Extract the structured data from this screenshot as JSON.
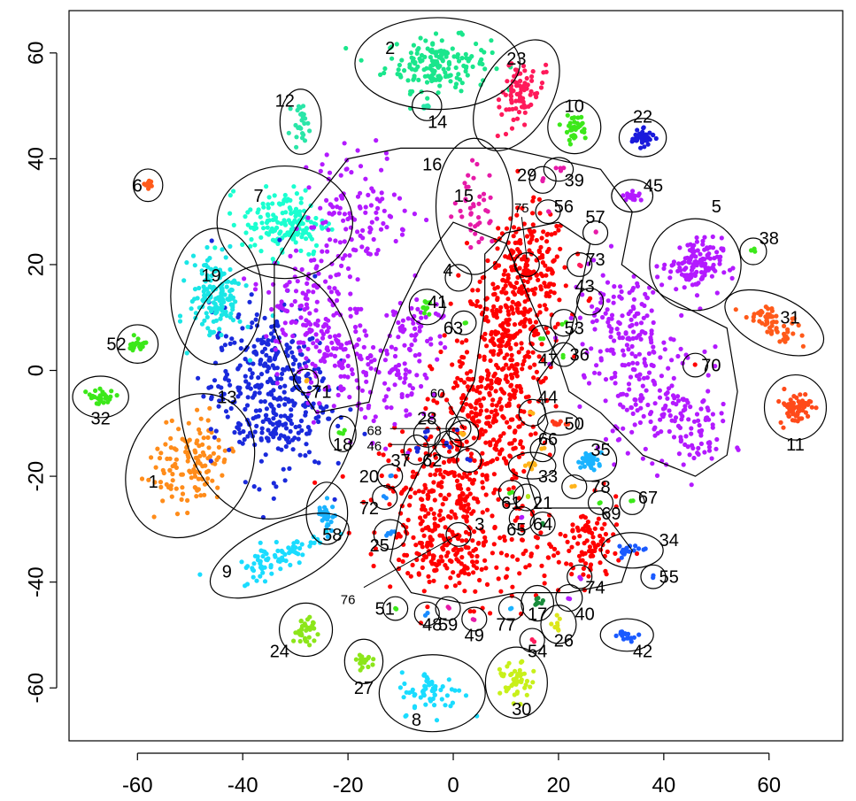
{
  "chart_data": {
    "type": "scatter",
    "title": "",
    "xlabel": "",
    "ylabel": "",
    "xlim": [
      -73,
      74
    ],
    "ylim": [
      -70,
      68
    ],
    "x_ticks": [
      -60,
      -40,
      -20,
      0,
      20,
      40,
      60
    ],
    "y_ticks": [
      -60,
      -40,
      -20,
      0,
      20,
      40,
      60
    ],
    "x_tick_labels": [
      "-60",
      "-40",
      "-20",
      "0",
      "20",
      "40",
      "60"
    ],
    "y_tick_labels": [
      "-60",
      "-40",
      "-20",
      "0",
      "20",
      "40",
      "60"
    ],
    "grid": false,
    "legend": "none",
    "clusters": [
      {
        "id": "1",
        "color": "#FF8C1A",
        "x": -50,
        "y": -18,
        "sx": 3.5,
        "sy": 4.5,
        "n": 130,
        "rot": -30
      },
      {
        "id": "2",
        "color": "#1AE68C",
        "x": -3,
        "y": 58,
        "sx": 5.0,
        "sy": 2.5,
        "n": 170
      },
      {
        "id": "3",
        "color": "#FF0000",
        "x": 5,
        "y": -15,
        "sx": 9.0,
        "sy": 20,
        "n": 1,
        "shape": "main"
      },
      {
        "id": "4",
        "color": "#FF0000",
        "x": 1,
        "y": 17.5,
        "sx": 0.3,
        "sy": 0.3,
        "n": 1
      },
      {
        "id": "5",
        "color": "#B31AFF",
        "x": 46,
        "y": 20,
        "sx": 2.5,
        "sy": 2.5,
        "n": 120
      },
      {
        "id": "6",
        "color": "#FF5A1A",
        "x": -58,
        "y": 35,
        "sx": 0.4,
        "sy": 0.5,
        "n": 12
      },
      {
        "id": "7",
        "color": "#1AFFD0",
        "x": -32,
        "y": 28,
        "sx": 4.0,
        "sy": 3.2,
        "n": 160
      },
      {
        "id": "8",
        "color": "#1ADCFF",
        "x": -4,
        "y": -61,
        "sx": 3.0,
        "sy": 2.0,
        "n": 60
      },
      {
        "id": "9",
        "color": "#1ADCFF",
        "x": -33,
        "y": -35,
        "sx": 4.5,
        "sy": 1.5,
        "n": 80,
        "rot": 25
      },
      {
        "id": "10",
        "color": "#3CE81A",
        "x": 23,
        "y": 46,
        "sx": 1.2,
        "sy": 1.2,
        "n": 35
      },
      {
        "id": "11",
        "color": "#FF4A1A",
        "x": 65,
        "y": -7,
        "sx": 1.5,
        "sy": 1.6,
        "n": 60
      },
      {
        "id": "12",
        "color": "#2AE6A8",
        "x": -29,
        "y": 47,
        "sx": 0.8,
        "sy": 1.6,
        "n": 25
      },
      {
        "id": "13",
        "color": "#1A2ADC",
        "x": -35,
        "y": -4,
        "sx": 5.5,
        "sy": 8.0,
        "n": 380
      },
      {
        "id": "14",
        "color": "#2AE6A8",
        "x": -5,
        "y": 50,
        "sx": 0.4,
        "sy": 0.4,
        "n": 5
      },
      {
        "id": "15",
        "color": "#E61AA8",
        "x": 4,
        "y": 31,
        "sx": 2.0,
        "sy": 4.0,
        "n": 40
      },
      {
        "id": "16",
        "color": "#B31AFF",
        "x": -12,
        "y": 10,
        "sx": 14,
        "sy": 14,
        "n": 1,
        "shape": "purple-left"
      },
      {
        "id": "17",
        "color": "#1A8C3C",
        "x": 16,
        "y": -44,
        "sx": 0.5,
        "sy": 0.6,
        "n": 8
      },
      {
        "id": "18",
        "color": "#3CE81A",
        "x": -21,
        "y": -12,
        "sx": 0.3,
        "sy": 0.6,
        "n": 4
      },
      {
        "id": "19",
        "color": "#1AE6E6",
        "x": -45,
        "y": 14,
        "sx": 2.5,
        "sy": 4.0,
        "n": 150
      },
      {
        "id": "20",
        "color": "#1A8CFF",
        "x": -12,
        "y": -20,
        "sx": 0.2,
        "sy": 0.2,
        "n": 2
      },
      {
        "id": "21",
        "color": "#B3E61A",
        "x": 14,
        "y": -24,
        "sx": 0.3,
        "sy": 0.3,
        "n": 2
      },
      {
        "id": "22",
        "color": "#1A1ADC",
        "x": 36,
        "y": 44,
        "sx": 1.0,
        "sy": 0.7,
        "n": 45
      },
      {
        "id": "23",
        "color": "#FF1A5A",
        "x": 12,
        "y": 52,
        "sx": 1.8,
        "sy": 3.5,
        "n": 80,
        "rot": -30
      },
      {
        "id": "24",
        "color": "#8CE61A",
        "x": -28,
        "y": -49,
        "sx": 1.2,
        "sy": 1.2,
        "n": 35
      },
      {
        "id": "25",
        "color": "#1A8CFF",
        "x": -12,
        "y": -31,
        "sx": 0.5,
        "sy": 0.4,
        "n": 5
      },
      {
        "id": "26",
        "color": "#DCE61A",
        "x": 20,
        "y": -48,
        "sx": 0.6,
        "sy": 0.7,
        "n": 8
      },
      {
        "id": "27",
        "color": "#8CE61A",
        "x": -17,
        "y": -55,
        "sx": 0.7,
        "sy": 0.9,
        "n": 18
      },
      {
        "id": "28",
        "color": "#1A2ADC",
        "x": -5,
        "y": -12,
        "sx": 0.3,
        "sy": 0.3,
        "n": 3
      },
      {
        "id": "29",
        "color": "#E61AA8",
        "x": 17,
        "y": 36,
        "sx": 0.3,
        "sy": 0.3,
        "n": 3
      },
      {
        "id": "30",
        "color": "#C8F01A",
        "x": 12,
        "y": -59,
        "sx": 1.5,
        "sy": 1.8,
        "n": 45
      },
      {
        "id": "31",
        "color": "#FF5A1A",
        "x": 61,
        "y": 9,
        "sx": 3.0,
        "sy": 1.2,
        "n": 60,
        "rot": -25
      },
      {
        "id": "32",
        "color": "#3CE81A",
        "x": -67,
        "y": -5,
        "sx": 1.3,
        "sy": 0.8,
        "n": 30
      },
      {
        "id": "33",
        "color": "#FFB31A",
        "x": 15,
        "y": -18,
        "sx": 1.0,
        "sy": 0.3,
        "n": 8
      },
      {
        "id": "34",
        "color": "#1A5AFF",
        "x": 34,
        "y": -34,
        "sx": 1.5,
        "sy": 0.6,
        "n": 15
      },
      {
        "id": "35",
        "color": "#1AB3FF",
        "x": 26,
        "y": -17,
        "sx": 1.2,
        "sy": 0.8,
        "n": 30
      },
      {
        "id": "36",
        "color": "#3CE81A",
        "x": 21,
        "y": 3,
        "sx": 0.2,
        "sy": 0.2,
        "n": 2
      },
      {
        "id": "37",
        "color": "#1A2ADC",
        "x": -7,
        "y": -15,
        "sx": 0.2,
        "sy": 0.4,
        "n": 3
      },
      {
        "id": "38",
        "color": "#3CE81A",
        "x": 57,
        "y": 22.5,
        "sx": 0.3,
        "sy": 0.3,
        "n": 3
      },
      {
        "id": "39",
        "color": "#E61AA8",
        "x": 20,
        "y": 38,
        "sx": 0.4,
        "sy": 0.2,
        "n": 4
      },
      {
        "id": "40",
        "color": "#B31AFF",
        "x": 22,
        "y": -43,
        "sx": 0.3,
        "sy": 0.3,
        "n": 2
      },
      {
        "id": "41",
        "color": "#3CE81A",
        "x": -5,
        "y": 12,
        "sx": 0.6,
        "sy": 0.6,
        "n": 10
      },
      {
        "id": "42",
        "color": "#1A5AFF",
        "x": 33,
        "y": -50,
        "sx": 1.2,
        "sy": 0.5,
        "n": 15
      },
      {
        "id": "43",
        "color": "#FF0000",
        "x": 26,
        "y": 13,
        "sx": 0.3,
        "sy": 0.3,
        "n": 2
      },
      {
        "id": "44",
        "color": "#FFB31A",
        "x": 15,
        "y": -8,
        "sx": 0.3,
        "sy": 0.3,
        "n": 2
      },
      {
        "id": "45",
        "color": "#B31AFF",
        "x": 34,
        "y": 33,
        "sx": 0.8,
        "sy": 0.5,
        "n": 20
      },
      {
        "id": "46",
        "color": "#1A2ADC",
        "x": -1,
        "y": -14,
        "sx": 0.3,
        "sy": 0.3,
        "n": 3
      },
      {
        "id": "47",
        "color": "#3CE81A",
        "x": 17,
        "y": 6,
        "sx": 0.3,
        "sy": 0.3,
        "n": 2
      },
      {
        "id": "48",
        "color": "#1A8CFF",
        "x": -5,
        "y": -46,
        "sx": 0.2,
        "sy": 0.2,
        "n": 2
      },
      {
        "id": "49",
        "color": "#E61AA8",
        "x": 4,
        "y": -47,
        "sx": 0.2,
        "sy": 0.2,
        "n": 2
      },
      {
        "id": "50",
        "color": "#FF3A1A",
        "x": 20,
        "y": -10,
        "sx": 0.8,
        "sy": 0.2,
        "n": 8
      },
      {
        "id": "51",
        "color": "#3CE81A",
        "x": -11,
        "y": -45,
        "sx": 0.2,
        "sy": 0.2,
        "n": 2
      },
      {
        "id": "52",
        "color": "#3CE81A",
        "x": -60,
        "y": 5,
        "sx": 0.8,
        "sy": 0.7,
        "n": 20
      },
      {
        "id": "53",
        "color": "#3CE81A",
        "x": 21,
        "y": 9,
        "sx": 0.3,
        "sy": 0.3,
        "n": 2
      },
      {
        "id": "54",
        "color": "#FF1A5A",
        "x": 15,
        "y": -51,
        "sx": 0.2,
        "sy": 0.2,
        "n": 2
      },
      {
        "id": "55",
        "color": "#1A5AFF",
        "x": 38,
        "y": -39,
        "sx": 0.2,
        "sy": 0.2,
        "n": 2
      },
      {
        "id": "56",
        "color": "#E61AA8",
        "x": 18,
        "y": 30,
        "sx": 0.2,
        "sy": 0.2,
        "n": 2
      },
      {
        "id": "57",
        "color": "#E61AA8",
        "x": 27,
        "y": 26,
        "sx": 0.2,
        "sy": 0.2,
        "n": 2
      },
      {
        "id": "58",
        "color": "#1AB3FF",
        "x": -24,
        "y": -27,
        "sx": 0.8,
        "sy": 1.5,
        "n": 30
      },
      {
        "id": "59",
        "color": "#E61AA8",
        "x": -1,
        "y": -45,
        "sx": 0.2,
        "sy": 0.2,
        "n": 2
      },
      {
        "id": "60",
        "color": "#FFB31A",
        "x": 2,
        "y": -12,
        "sx": 0.4,
        "sy": 0.3,
        "n": 3
      },
      {
        "id": "61",
        "color": "#3CE81A",
        "x": 11,
        "y": -23,
        "sx": 0.2,
        "sy": 0.2,
        "n": 2
      },
      {
        "id": "62",
        "color": "#1A2ADC",
        "x": 3,
        "y": -17,
        "sx": 0.2,
        "sy": 0.2,
        "n": 2
      },
      {
        "id": "63",
        "color": "#3CE81A",
        "x": 2,
        "y": 9,
        "sx": 0.2,
        "sy": 0.2,
        "n": 2
      },
      {
        "id": "64",
        "color": "#1A8C3C",
        "x": 17,
        "y": -29,
        "sx": 0.2,
        "sy": 0.2,
        "n": 2
      },
      {
        "id": "65",
        "color": "#B31AFF",
        "x": 13,
        "y": -28,
        "sx": 0.2,
        "sy": 0.2,
        "n": 2
      },
      {
        "id": "66",
        "color": "#FFB31A",
        "x": 17,
        "y": -15,
        "sx": 0.2,
        "sy": 0.2,
        "n": 2
      },
      {
        "id": "67",
        "color": "#3CE81A",
        "x": 34,
        "y": -25,
        "sx": 0.2,
        "sy": 0.2,
        "n": 2
      },
      {
        "id": "68",
        "color": "#1A2ADC",
        "x": 1,
        "y": -11,
        "sx": 0.2,
        "sy": 0.2,
        "n": 1
      },
      {
        "id": "69",
        "color": "#3CE81A",
        "x": 28,
        "y": -25,
        "sx": 0.2,
        "sy": 0.2,
        "n": 2
      },
      {
        "id": "70",
        "color": "#FF0000",
        "x": 46,
        "y": 1,
        "sx": 0.2,
        "sy": 0.2,
        "n": 1
      },
      {
        "id": "71",
        "color": "#FFB31A",
        "x": -28,
        "y": -2,
        "sx": 0.2,
        "sy": 0.2,
        "n": 2
      },
      {
        "id": "72",
        "color": "#1A8CFF",
        "x": -13,
        "y": -24,
        "sx": 0.2,
        "sy": 0.2,
        "n": 2
      },
      {
        "id": "73",
        "color": "#FF1A5A",
        "x": 24,
        "y": 20,
        "sx": 0.2,
        "sy": 0.2,
        "n": 2
      },
      {
        "id": "74",
        "color": "#B31AFF",
        "x": 24,
        "y": -39,
        "sx": 0.2,
        "sy": 0.2,
        "n": 2
      },
      {
        "id": "75",
        "color": "#FF0000",
        "x": 14,
        "y": 20,
        "sx": 0.2,
        "sy": 0.2,
        "n": 1
      },
      {
        "id": "76",
        "color": "#FF0000",
        "x": 1,
        "y": -31,
        "sx": 0.2,
        "sy": 0.2,
        "n": 1
      },
      {
        "id": "77",
        "color": "#1AB3FF",
        "x": 11,
        "y": -45,
        "sx": 0.2,
        "sy": 0.2,
        "n": 2
      },
      {
        "id": "78",
        "color": "#FFB31A",
        "x": 23,
        "y": -22,
        "sx": 0.2,
        "sy": 0.2,
        "n": 2
      }
    ]
  }
}
